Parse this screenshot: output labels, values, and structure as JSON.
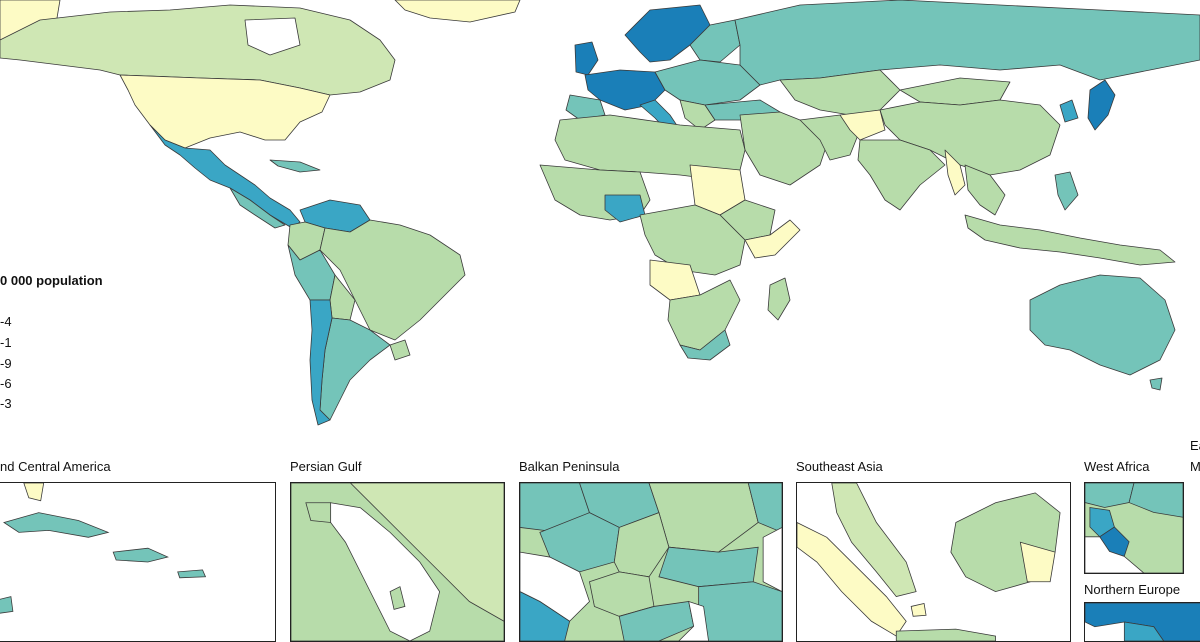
{
  "map": {
    "colors": {
      "ocean": "#ffffff",
      "class_1": "#fdfbc5",
      "class_2": "#cfe7b4",
      "class_3": "#b7dcaa",
      "class_4": "#74c4b9",
      "class_5": "#3aa6c5",
      "class_6": "#1a7fb8",
      "border": "#3a3a3a"
    },
    "legend": {
      "title": "0 000 population",
      "items": [
        "-4",
        "-1",
        "-9",
        "-6",
        "-3"
      ]
    },
    "insets": [
      {
        "label": "nd Central America"
      },
      {
        "label": "Persian Gulf"
      },
      {
        "label": "Balkan Peninsula"
      },
      {
        "label": "Southeast Asia"
      },
      {
        "label": "West Africa"
      },
      {
        "label": "Ea"
      },
      {
        "label": "M"
      },
      {
        "label": "Northern Europe"
      }
    ]
  }
}
